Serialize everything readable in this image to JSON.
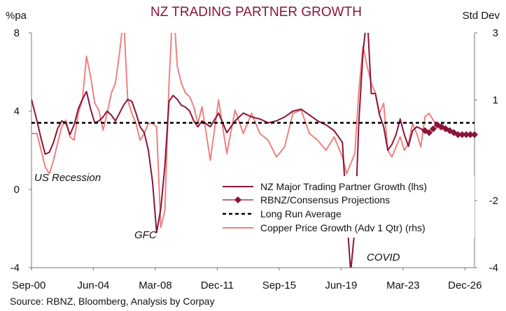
{
  "chart_data": {
    "type": "line",
    "title": "NZ TRADING PARTNER GROWTH",
    "left_unit": "%pa",
    "right_unit": "Std Dev",
    "left_axis": {
      "min": -4,
      "max": 8,
      "ticks": [
        "8",
        "4",
        "0",
        "-4"
      ],
      "tick_values": [
        8,
        4,
        0,
        -4
      ]
    },
    "right_axis": {
      "min": -4,
      "max": 3,
      "ticks": [
        "3",
        "1",
        "-2",
        "-4"
      ],
      "tick_values": [
        3,
        1,
        -2,
        -4
      ]
    },
    "x_axis": {
      "min": 2000.67,
      "max": 2027.5,
      "ticks": [
        "Sep-00",
        "Jun-04",
        "Mar-08",
        "Dec-11",
        "Sep-15",
        "Jun-19",
        "Mar-23",
        "Dec-26"
      ],
      "tick_values": [
        2000.67,
        2004.42,
        2008.17,
        2011.92,
        2015.67,
        2019.42,
        2023.17,
        2026.92
      ]
    },
    "annotations": [
      "US Recession",
      "GFC",
      "COVID"
    ],
    "source": "Source: RBNZ, Bloomberg, Analysis by Corpay",
    "legend_position": "bottom-right",
    "grid": false,
    "colors": {
      "nz": "#8a1538",
      "copper": "#f08080",
      "avg": "#000000",
      "title": "#8a1538"
    },
    "series": [
      {
        "name": "NZ Major Trading Partner Growth (lhs)",
        "axis": "left",
        "x": [
          2000.67,
          2001.0,
          2001.25,
          2001.5,
          2001.75,
          2002.0,
          2002.25,
          2002.5,
          2002.75,
          2003.0,
          2003.25,
          2003.5,
          2003.75,
          2004.0,
          2004.25,
          2004.5,
          2004.75,
          2005.0,
          2005.25,
          2005.5,
          2005.75,
          2006.0,
          2006.25,
          2006.5,
          2006.75,
          2007.0,
          2007.25,
          2007.5,
          2007.75,
          2008.0,
          2008.25,
          2008.5,
          2008.75,
          2009.0,
          2009.25,
          2009.5,
          2009.75,
          2010.0,
          2010.25,
          2010.5,
          2010.75,
          2011.0,
          2011.5,
          2012.0,
          2012.5,
          2013.0,
          2013.5,
          2014.0,
          2014.5,
          2015.0,
          2015.5,
          2016.0,
          2016.5,
          2017.0,
          2017.5,
          2018.0,
          2018.5,
          2019.0,
          2019.5,
          2019.75,
          2020.0,
          2020.25,
          2020.5,
          2020.75,
          2021.0,
          2021.25,
          2021.5,
          2021.75,
          2022.0,
          2022.25,
          2022.5,
          2022.75,
          2023.0,
          2023.25,
          2023.5,
          2023.75,
          2024.0,
          2024.25,
          2024.5
        ],
        "values": [
          4.6,
          3.5,
          2.6,
          1.8,
          1.9,
          2.4,
          3.1,
          3.5,
          3.4,
          2.8,
          3.3,
          4.1,
          4.6,
          5.0,
          4.1,
          3.4,
          3.5,
          3.7,
          4.0,
          3.8,
          3.5,
          3.9,
          4.3,
          4.6,
          4.5,
          3.9,
          3.2,
          2.9,
          2.0,
          0.4,
          -2.2,
          -1.0,
          1.2,
          4.5,
          4.8,
          4.6,
          4.3,
          4.2,
          4.0,
          3.5,
          3.2,
          3.5,
          3.2,
          3.9,
          2.9,
          3.5,
          3.9,
          3.7,
          3.6,
          3.4,
          3.5,
          3.7,
          4.0,
          4.1,
          3.8,
          3.5,
          3.3,
          3.0,
          2.4,
          -1.2,
          -4.2,
          -2.0,
          3.5,
          7.0,
          9.0,
          4.9,
          4.9,
          3.8,
          3.2,
          2.0,
          2.3,
          2.8,
          3.6,
          2.8,
          2.2,
          3.0,
          3.2,
          3.1,
          3.0
        ]
      },
      {
        "name": "RBNZ/Consensus Projections",
        "axis": "left",
        "x": [
          2024.5,
          2024.75,
          2025.0,
          2025.25,
          2025.5,
          2025.75,
          2026.0,
          2026.25,
          2026.5,
          2026.75,
          2027.0,
          2027.25,
          2027.5
        ],
        "values": [
          3.0,
          2.9,
          3.1,
          3.3,
          3.2,
          3.1,
          3.0,
          2.9,
          2.8,
          2.8,
          2.8,
          2.8,
          2.8
        ]
      },
      {
        "name": "Long Run Average",
        "axis": "left",
        "x": [
          2000.67,
          2027.5
        ],
        "values": [
          3.4,
          3.4
        ]
      },
      {
        "name": "Copper Price Growth (Adv 1 Qtr) (rhs)",
        "axis": "right",
        "x": [
          2000.67,
          2001.0,
          2001.25,
          2001.5,
          2001.75,
          2002.0,
          2002.25,
          2002.5,
          2002.75,
          2003.0,
          2003.25,
          2003.5,
          2003.75,
          2004.0,
          2004.25,
          2004.5,
          2004.75,
          2005.0,
          2005.25,
          2005.5,
          2005.75,
          2006.0,
          2006.25,
          2006.5,
          2006.75,
          2007.0,
          2007.25,
          2007.5,
          2007.75,
          2008.0,
          2008.25,
          2008.5,
          2008.75,
          2009.0,
          2009.25,
          2009.5,
          2009.75,
          2010.0,
          2010.25,
          2010.5,
          2010.75,
          2011.0,
          2011.5,
          2012.0,
          2012.5,
          2013.0,
          2013.5,
          2014.0,
          2014.5,
          2015.0,
          2015.5,
          2016.0,
          2016.5,
          2017.0,
          2017.5,
          2018.0,
          2018.5,
          2019.0,
          2019.5,
          2019.75,
          2020.0,
          2020.25,
          2020.5,
          2020.75,
          2021.0,
          2021.25,
          2021.5,
          2021.75,
          2022.0,
          2022.25,
          2022.5,
          2022.75,
          2023.0,
          2023.25,
          2023.5,
          2023.75,
          2024.0,
          2024.25,
          2024.5,
          2024.75,
          2025.0,
          2025.25,
          2025.5
        ],
        "values": [
          0.0,
          0.0,
          -0.5,
          -1.0,
          -1.2,
          -0.8,
          -0.3,
          0.2,
          0.4,
          -0.1,
          -0.2,
          0.6,
          1.0,
          2.3,
          1.7,
          0.9,
          0.7,
          0.1,
          0.6,
          1.2,
          1.5,
          2.4,
          3.5,
          1.0,
          0.6,
          0.3,
          -0.2,
          0.0,
          0.3,
          0.3,
          0.2,
          -2.8,
          -2.3,
          1.5,
          4.0,
          2.0,
          1.5,
          1.2,
          1.1,
          0.8,
          0.3,
          0.8,
          -0.8,
          1.0,
          -0.6,
          0.7,
          0.0,
          0.6,
          0.0,
          -0.2,
          -0.7,
          -0.4,
          0.6,
          0.7,
          0.0,
          -0.2,
          -0.5,
          -0.1,
          -0.7,
          -1.2,
          -0.9,
          -0.6,
          1.3,
          2.6,
          2.0,
          1.5,
          1.2,
          0.6,
          0.9,
          -0.5,
          -0.7,
          -0.4,
          -0.1,
          -0.5,
          -0.3,
          0.3,
          0.0,
          -0.4,
          0.5,
          0.6,
          0.4,
          0.2,
          0.1
        ]
      }
    ]
  }
}
